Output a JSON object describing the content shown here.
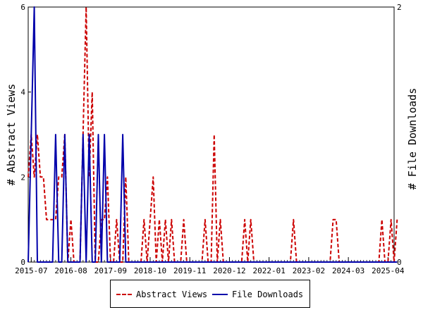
{
  "chart_data": {
    "type": "line",
    "title": "",
    "xlabel": "",
    "y_left_label": "# Abstract Views",
    "y_right_label": "# File Downloads",
    "x_tick_labels": [
      "2015-07",
      "2016-08",
      "2017-09",
      "2018-10",
      "2019-11",
      "2020-12",
      "2022-01",
      "2023-02",
      "2024-03",
      "2025-04"
    ],
    "y_left_ticks": [
      0,
      2,
      4,
      6
    ],
    "y_right_ticks": [
      0,
      2
    ],
    "y_left_range": [
      0,
      6
    ],
    "y_right_range": [
      0,
      2
    ],
    "x_start": "2015-06",
    "x_end": "2025-06",
    "legend_position": "bottom",
    "series": [
      {
        "name": "Abstract Views",
        "axis": "left",
        "color": "#cc0000",
        "style": "dashed",
        "points": [
          [
            "2015-06",
            2
          ],
          [
            "2015-07",
            3
          ],
          [
            "2015-08",
            2
          ],
          [
            "2015-09",
            3
          ],
          [
            "2015-10",
            2
          ],
          [
            "2015-11",
            2
          ],
          [
            "2015-12",
            1
          ],
          [
            "2016-01",
            1
          ],
          [
            "2016-02",
            1
          ],
          [
            "2016-03",
            1
          ],
          [
            "2016-04",
            2
          ],
          [
            "2016-05",
            2
          ],
          [
            "2016-06",
            3
          ],
          [
            "2016-07",
            0
          ],
          [
            "2016-08",
            1
          ],
          [
            "2016-09",
            0
          ],
          [
            "2016-10",
            0
          ],
          [
            "2016-11",
            0
          ],
          [
            "2016-12",
            3
          ],
          [
            "2017-01",
            6
          ],
          [
            "2017-02",
            2
          ],
          [
            "2017-03",
            4
          ],
          [
            "2017-04",
            0
          ],
          [
            "2017-05",
            0
          ],
          [
            "2017-06",
            1
          ],
          [
            "2017-07",
            1
          ],
          [
            "2017-08",
            2
          ],
          [
            "2017-09",
            0
          ],
          [
            "2017-10",
            0
          ],
          [
            "2017-11",
            1
          ],
          [
            "2017-12",
            0
          ],
          [
            "2018-01",
            0
          ],
          [
            "2018-02",
            2
          ],
          [
            "2018-03",
            0
          ],
          [
            "2018-04",
            0
          ],
          [
            "2018-05",
            0
          ],
          [
            "2018-06",
            0
          ],
          [
            "2018-07",
            0
          ],
          [
            "2018-08",
            1
          ],
          [
            "2018-09",
            0
          ],
          [
            "2018-10",
            1
          ],
          [
            "2018-11",
            2
          ],
          [
            "2018-12",
            0
          ],
          [
            "2019-01",
            1
          ],
          [
            "2019-02",
            0
          ],
          [
            "2019-03",
            1
          ],
          [
            "2019-04",
            0
          ],
          [
            "2019-05",
            1
          ],
          [
            "2019-06",
            0
          ],
          [
            "2019-07",
            0
          ],
          [
            "2019-08",
            0
          ],
          [
            "2019-09",
            1
          ],
          [
            "2019-10",
            0
          ],
          [
            "2019-11",
            0
          ],
          [
            "2019-12",
            0
          ],
          [
            "2020-01",
            0
          ],
          [
            "2020-02",
            0
          ],
          [
            "2020-03",
            0
          ],
          [
            "2020-04",
            1
          ],
          [
            "2020-05",
            0
          ],
          [
            "2020-06",
            0
          ],
          [
            "2020-07",
            3
          ],
          [
            "2020-08",
            0
          ],
          [
            "2020-09",
            1
          ],
          [
            "2020-10",
            0
          ],
          [
            "2020-11",
            0
          ],
          [
            "2020-12",
            0
          ],
          [
            "2021-01",
            0
          ],
          [
            "2021-02",
            0
          ],
          [
            "2021-03",
            0
          ],
          [
            "2021-04",
            0
          ],
          [
            "2021-05",
            1
          ],
          [
            "2021-06",
            0
          ],
          [
            "2021-07",
            1
          ],
          [
            "2021-08",
            0
          ],
          [
            "2021-09",
            0
          ],
          [
            "2021-10",
            0
          ],
          [
            "2021-11",
            0
          ],
          [
            "2021-12",
            0
          ],
          [
            "2022-01",
            0
          ],
          [
            "2022-02",
            0
          ],
          [
            "2022-03",
            0
          ],
          [
            "2022-04",
            0
          ],
          [
            "2022-05",
            0
          ],
          [
            "2022-06",
            0
          ],
          [
            "2022-07",
            0
          ],
          [
            "2022-08",
            0
          ],
          [
            "2022-09",
            1
          ],
          [
            "2022-10",
            0
          ],
          [
            "2022-11",
            0
          ],
          [
            "2022-12",
            0
          ],
          [
            "2023-01",
            0
          ],
          [
            "2023-02",
            0
          ],
          [
            "2023-03",
            0
          ],
          [
            "2023-04",
            0
          ],
          [
            "2023-05",
            0
          ],
          [
            "2023-06",
            0
          ],
          [
            "2023-07",
            0
          ],
          [
            "2023-08",
            0
          ],
          [
            "2023-09",
            0
          ],
          [
            "2023-10",
            1
          ],
          [
            "2023-11",
            1
          ],
          [
            "2023-12",
            0
          ],
          [
            "2024-01",
            0
          ],
          [
            "2024-02",
            0
          ],
          [
            "2024-03",
            0
          ],
          [
            "2024-04",
            0
          ],
          [
            "2024-05",
            0
          ],
          [
            "2024-06",
            0
          ],
          [
            "2024-07",
            0
          ],
          [
            "2024-08",
            0
          ],
          [
            "2024-09",
            0
          ],
          [
            "2024-10",
            0
          ],
          [
            "2024-11",
            0
          ],
          [
            "2024-12",
            0
          ],
          [
            "2025-01",
            0
          ],
          [
            "2025-02",
            1
          ],
          [
            "2025-03",
            0
          ],
          [
            "2025-04",
            0
          ],
          [
            "2025-05",
            1
          ],
          [
            "2025-06",
            0
          ],
          [
            "2025-07",
            1
          ]
        ]
      },
      {
        "name": "File Downloads",
        "axis": "right",
        "color": "#0000aa",
        "style": "solid",
        "points": [
          [
            "2015-06",
            0
          ],
          [
            "2015-07",
            1
          ],
          [
            "2015-08",
            2
          ],
          [
            "2015-09",
            0
          ],
          [
            "2015-10",
            0
          ],
          [
            "2015-11",
            0
          ],
          [
            "2015-12",
            0
          ],
          [
            "2016-01",
            0
          ],
          [
            "2016-02",
            0
          ],
          [
            "2016-03",
            1
          ],
          [
            "2016-04",
            0
          ],
          [
            "2016-05",
            0
          ],
          [
            "2016-06",
            1
          ],
          [
            "2016-07",
            0
          ],
          [
            "2016-08",
            0
          ],
          [
            "2016-09",
            0
          ],
          [
            "2016-10",
            0
          ],
          [
            "2016-11",
            0
          ],
          [
            "2016-12",
            1
          ],
          [
            "2017-01",
            0
          ],
          [
            "2017-02",
            1
          ],
          [
            "2017-03",
            0
          ],
          [
            "2017-04",
            0
          ],
          [
            "2017-05",
            1
          ],
          [
            "2017-06",
            0
          ],
          [
            "2017-07",
            1
          ],
          [
            "2017-08",
            0
          ],
          [
            "2017-09",
            0
          ],
          [
            "2017-10",
            0
          ],
          [
            "2017-11",
            0
          ],
          [
            "2017-12",
            0
          ],
          [
            "2018-01",
            1
          ],
          [
            "2018-02",
            0
          ],
          [
            "2018-03",
            0
          ],
          [
            "2018-04",
            0
          ],
          [
            "2018-05",
            0
          ],
          [
            "2025-07",
            0
          ]
        ]
      }
    ]
  }
}
